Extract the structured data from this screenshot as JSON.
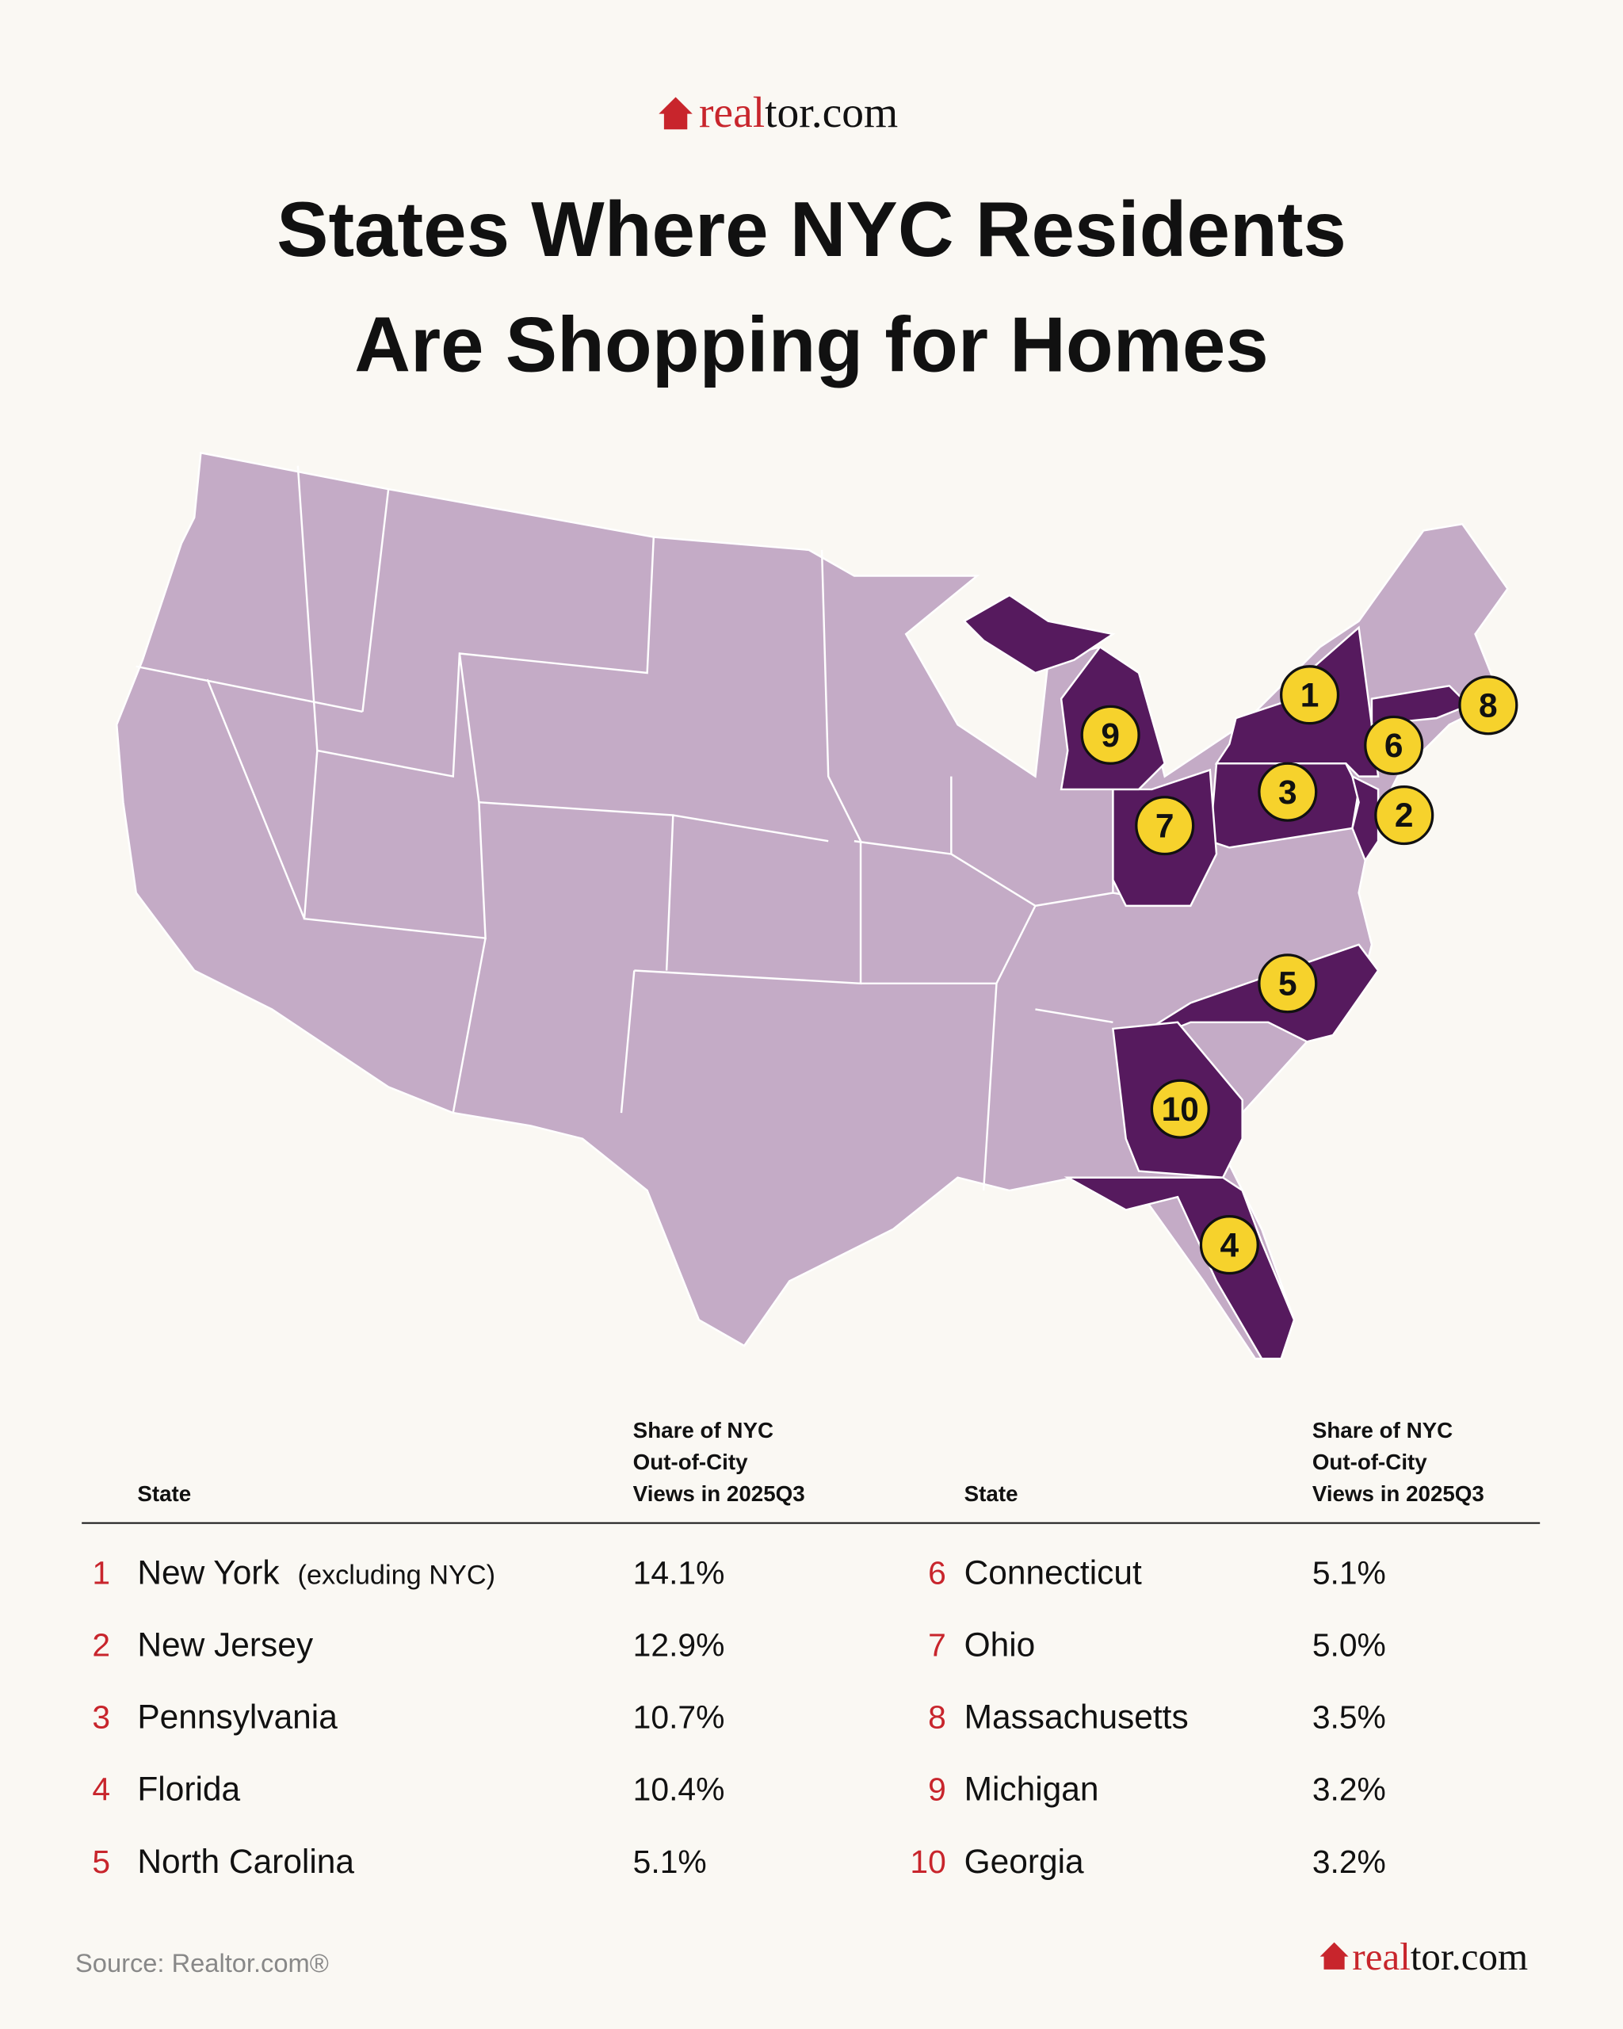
{
  "logo": {
    "accent": "real",
    "rest": "tor.com"
  },
  "title": [
    "States Where NYC Residents",
    "Are Shopping for Homes"
  ],
  "table": {
    "state_header": "State",
    "share_header": [
      "Share of NYC",
      "Out-of-City",
      "Views in 2025Q3"
    ],
    "rows": [
      {
        "rank": "1",
        "state": "New York",
        "note": "(excluding NYC)",
        "share": "14.1%"
      },
      {
        "rank": "2",
        "state": "New Jersey",
        "share": "12.9%"
      },
      {
        "rank": "3",
        "state": "Pennsylvania",
        "share": "10.7%"
      },
      {
        "rank": "4",
        "state": "Florida",
        "share": "10.4%"
      },
      {
        "rank": "5",
        "state": "North Carolina",
        "share": "5.1%"
      },
      {
        "rank": "6",
        "state": "Connecticut",
        "share": "5.1%"
      },
      {
        "rank": "7",
        "state": "Ohio",
        "share": "5.0%"
      },
      {
        "rank": "8",
        "state": "Massachusetts",
        "share": "3.5%"
      },
      {
        "rank": "9",
        "state": "Michigan",
        "share": "3.2%"
      },
      {
        "rank": "10",
        "state": "Georgia",
        "share": "3.2%"
      }
    ]
  },
  "source": "Source: Realtor.com®"
}
